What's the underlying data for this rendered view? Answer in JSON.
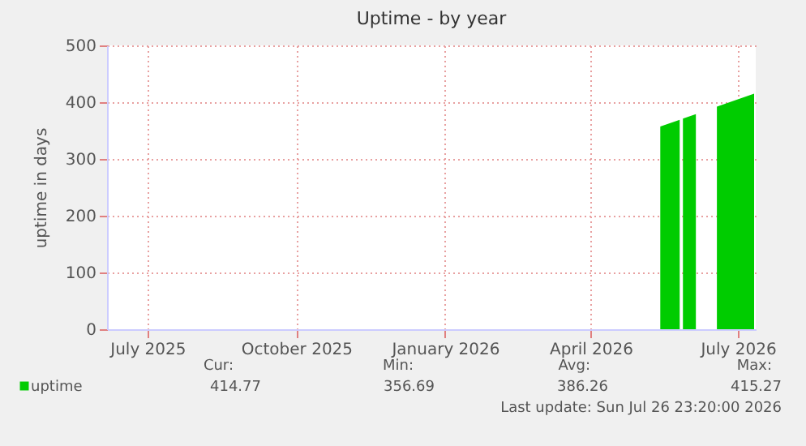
{
  "chart_data": {
    "type": "area",
    "title": "Uptime - by year",
    "ylabel": "uptime in days",
    "xlim": [
      "2025-06-21",
      "2026-07-27"
    ],
    "xticks": [
      {
        "value": "2025-07-16",
        "label": "July 2025"
      },
      {
        "value": "2025-10-16",
        "label": "October 2025"
      },
      {
        "value": "2026-01-16",
        "label": "January 2026"
      },
      {
        "value": "2026-04-16",
        "label": "April 2026"
      },
      {
        "value": "2026-07-16",
        "label": "July 2026"
      }
    ],
    "ylim": [
      0,
      500
    ],
    "yticks": [
      0,
      100,
      200,
      300,
      400,
      500
    ],
    "series": [
      {
        "name": "uptime",
        "color": "#00cc00",
        "x": [
          "2026-05-29",
          "2026-06-10",
          "2026-06-11",
          "2026-06-12",
          "2026-06-20",
          "2026-06-25",
          "2026-07-03",
          "2026-07-26"
        ],
        "values": [
          357,
          369,
          null,
          371,
          379,
          null,
          392,
          415
        ]
      }
    ],
    "annotations": [
      "Cur:",
      "Min:",
      "Avg:",
      "Max:",
      "414.77",
      "356.69",
      "386.26",
      "415.27",
      "Last update: Sun Jul 26 23:20:00 2026"
    ],
    "grid": true,
    "legend": "bottom"
  }
}
